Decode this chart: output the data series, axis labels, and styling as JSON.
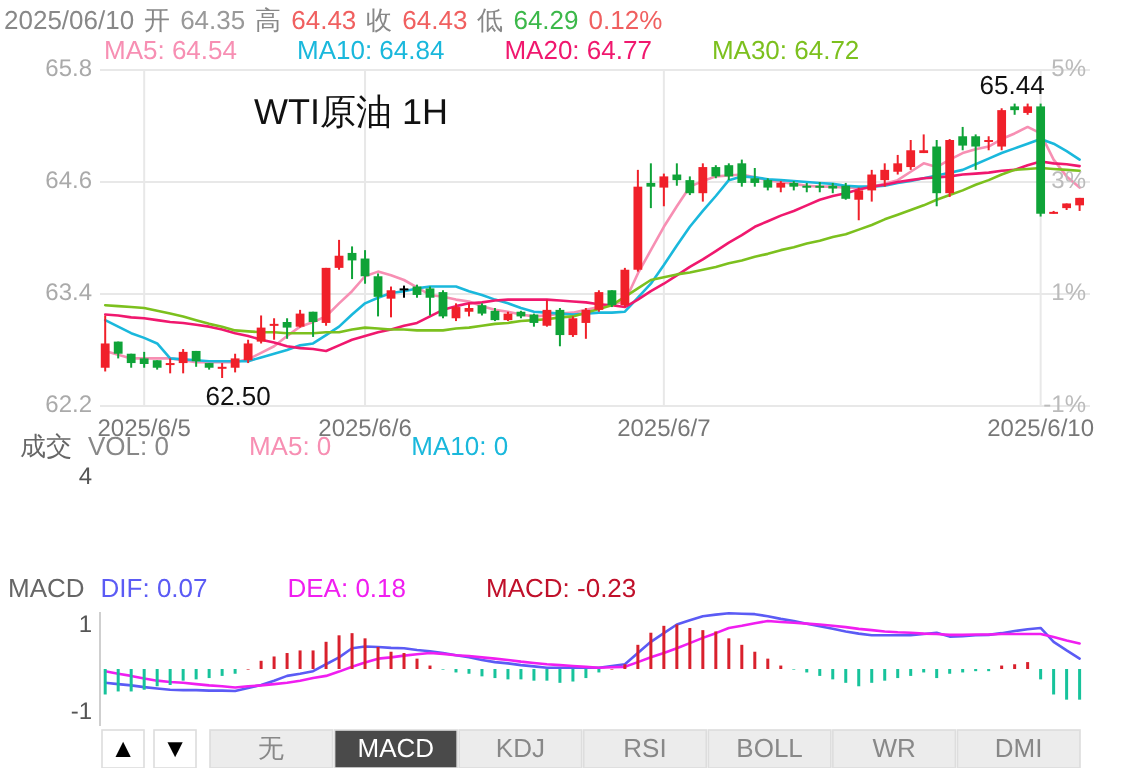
{
  "chart_data": [
    {
      "type": "candlestick",
      "title": "WTI原油 1H",
      "legend": "top",
      "grid": true,
      "categories": [
        null,
        null,
        null,
        "2025/6/5",
        null,
        null,
        null,
        null,
        null,
        null,
        null,
        null,
        null,
        null,
        null,
        null,
        null,
        null,
        null,
        null,
        "2025/6/6",
        null,
        null,
        null,
        null,
        null,
        null,
        null,
        null,
        null,
        null,
        null,
        null,
        null,
        null,
        null,
        null,
        null,
        null,
        null,
        null,
        null,
        null,
        "2025/6/7",
        null,
        null,
        null,
        null,
        null,
        null,
        null,
        null,
        null,
        null,
        null,
        null,
        null,
        null,
        null,
        null,
        null,
        null,
        null,
        null,
        null,
        null,
        null,
        null,
        null,
        null,
        null,
        null,
        "2025/6/10",
        null,
        null,
        null
      ],
      "ohlc": [
        [
          62.61,
          63.17,
          62.57,
          62.87
        ],
        [
          62.89,
          62.89,
          62.71,
          62.76
        ],
        [
          62.76,
          62.76,
          62.61,
          62.66
        ],
        [
          62.71,
          62.78,
          62.61,
          62.65
        ],
        [
          62.69,
          62.69,
          62.59,
          62.61
        ],
        [
          62.64,
          62.71,
          62.55,
          62.66
        ],
        [
          62.66,
          62.81,
          62.55,
          62.78
        ],
        [
          62.79,
          62.79,
          62.62,
          62.68
        ],
        [
          62.66,
          62.66,
          62.59,
          62.61
        ],
        [
          62.61,
          62.66,
          62.5,
          62.62
        ],
        [
          62.61,
          62.76,
          62.56,
          62.71
        ],
        [
          62.69,
          62.91,
          62.66,
          62.87
        ],
        [
          62.89,
          63.17,
          62.87,
          63.04
        ],
        [
          63.06,
          63.14,
          62.91,
          63.08
        ],
        [
          63.1,
          63.14,
          62.92,
          63.04
        ],
        [
          63.05,
          63.23,
          63.04,
          63.19
        ],
        [
          63.21,
          63.21,
          62.94,
          63.1
        ],
        [
          63.09,
          63.68,
          63.06,
          63.68
        ],
        [
          63.68,
          63.98,
          63.66,
          63.81
        ],
        [
          63.84,
          63.91,
          63.56,
          63.76
        ],
        [
          63.78,
          63.87,
          63.51,
          63.59
        ],
        [
          63.59,
          63.62,
          63.16,
          63.37
        ],
        [
          63.35,
          63.48,
          63.15,
          63.44
        ],
        [
          63.46,
          63.49,
          63.36,
          63.46
        ],
        [
          63.48,
          63.5,
          63.36,
          63.39
        ],
        [
          63.46,
          63.48,
          63.17,
          63.36
        ],
        [
          63.42,
          63.44,
          63.14,
          63.16
        ],
        [
          63.14,
          63.3,
          63.11,
          63.26
        ],
        [
          63.21,
          63.3,
          63.16,
          63.25
        ],
        [
          63.28,
          63.3,
          63.17,
          63.19
        ],
        [
          63.22,
          63.25,
          63.11,
          63.12
        ],
        [
          63.12,
          63.21,
          63.11,
          63.19
        ],
        [
          63.21,
          63.22,
          63.14,
          63.16
        ],
        [
          63.18,
          63.19,
          63.05,
          63.09
        ],
        [
          63.06,
          63.34,
          63.05,
          63.23
        ],
        [
          63.23,
          63.25,
          62.84,
          62.96
        ],
        [
          62.96,
          63.16,
          62.94,
          63.14
        ],
        [
          63.09,
          63.25,
          62.92,
          63.23
        ],
        [
          63.23,
          63.44,
          63.21,
          63.42
        ],
        [
          63.44,
          63.44,
          63.26,
          63.28
        ],
        [
          63.28,
          63.68,
          63.26,
          63.66
        ],
        [
          63.66,
          64.73,
          63.64,
          64.55
        ],
        [
          64.59,
          64.8,
          64.32,
          64.55
        ],
        [
          64.54,
          64.69,
          64.34,
          64.66
        ],
        [
          64.68,
          64.8,
          64.56,
          64.62
        ],
        [
          64.62,
          64.66,
          64.46,
          64.48
        ],
        [
          64.48,
          64.8,
          64.39,
          64.76
        ],
        [
          64.76,
          64.78,
          64.64,
          64.66
        ],
        [
          64.78,
          64.8,
          64.62,
          64.66
        ],
        [
          64.8,
          64.84,
          64.55,
          64.59
        ],
        [
          64.64,
          64.75,
          64.55,
          64.59
        ],
        [
          64.62,
          64.64,
          64.51,
          64.54
        ],
        [
          64.54,
          64.61,
          64.49,
          64.59
        ],
        [
          64.59,
          64.61,
          64.51,
          64.55
        ],
        [
          64.56,
          64.59,
          64.49,
          64.54
        ],
        [
          64.56,
          64.6,
          64.49,
          64.54
        ],
        [
          64.56,
          64.59,
          64.48,
          64.53
        ],
        [
          64.56,
          64.59,
          64.41,
          64.42
        ],
        [
          64.41,
          64.54,
          64.19,
          64.51
        ],
        [
          64.51,
          64.73,
          64.39,
          64.68
        ],
        [
          64.62,
          64.8,
          64.55,
          64.73
        ],
        [
          64.71,
          64.89,
          64.68,
          64.8
        ],
        [
          64.76,
          65.05,
          64.73,
          64.94
        ],
        [
          64.91,
          65.11,
          64.91,
          64.94
        ],
        [
          64.98,
          65.05,
          64.34,
          64.48
        ],
        [
          64.48,
          65.06,
          64.44,
          65.05
        ],
        [
          65.09,
          65.19,
          64.94,
          64.99
        ],
        [
          65.09,
          65.11,
          64.73,
          64.98
        ],
        [
          65.03,
          65.09,
          64.94,
          65.05
        ],
        [
          64.98,
          65.39,
          64.94,
          65.37
        ],
        [
          65.41,
          65.44,
          65.32,
          65.37
        ],
        [
          65.34,
          65.44,
          65.32,
          65.41
        ],
        [
          65.41,
          65.44,
          64.23,
          64.26
        ],
        [
          64.26,
          64.29,
          64.26,
          64.28
        ],
        [
          64.32,
          64.37,
          64.3,
          64.37
        ],
        [
          64.35,
          64.43,
          64.29,
          64.43
        ]
      ],
      "series": [
        {
          "name": "MA5: 64.54",
          "type": "line",
          "color": "#f78fb3",
          "values": [
            62.79,
            62.75,
            62.71,
            62.71,
            62.71,
            62.71,
            62.69,
            62.67,
            62.67,
            62.67,
            62.67,
            62.7,
            62.77,
            62.84,
            62.95,
            63.05,
            63.1,
            63.16,
            63.3,
            63.43,
            63.59,
            63.64,
            63.6,
            63.55,
            63.47,
            63.39,
            63.37,
            63.34,
            63.32,
            63.27,
            63.23,
            63.21,
            63.18,
            63.16,
            63.17,
            63.19,
            63.2,
            63.23,
            63.26,
            63.29,
            63.32,
            63.62,
            63.87,
            64.12,
            64.34,
            64.55,
            64.61,
            64.66,
            64.67,
            64.68,
            64.65,
            64.62,
            64.6,
            64.58,
            64.56,
            64.55,
            64.55,
            64.54,
            64.54,
            64.55,
            64.58,
            64.62,
            64.71,
            64.8,
            64.76,
            64.84,
            64.91,
            64.95,
            64.98,
            65.06,
            65.12,
            65.19,
            65.12,
            64.84,
            64.66,
            64.54
          ]
        },
        {
          "name": "MA10: 64.84",
          "type": "line",
          "color": "#1ab8dc",
          "values": [
            63.12,
            63.05,
            62.98,
            62.93,
            62.87,
            62.71,
            62.7,
            62.69,
            62.68,
            62.68,
            62.68,
            62.68,
            62.72,
            62.76,
            62.8,
            62.85,
            62.87,
            62.96,
            63.05,
            63.18,
            63.3,
            63.36,
            63.41,
            63.43,
            63.46,
            63.48,
            63.48,
            63.48,
            63.43,
            63.39,
            63.34,
            63.3,
            63.25,
            63.21,
            63.2,
            63.19,
            63.18,
            63.19,
            63.2,
            63.2,
            63.21,
            63.36,
            63.51,
            63.71,
            63.92,
            64.12,
            64.29,
            64.45,
            64.62,
            64.66,
            64.65,
            64.63,
            64.62,
            64.61,
            64.6,
            64.59,
            64.58,
            64.56,
            64.55,
            64.55,
            64.56,
            64.59,
            64.61,
            64.64,
            64.67,
            64.7,
            64.73,
            64.79,
            64.85,
            64.91,
            64.96,
            65.01,
            65.06,
            65.01,
            64.93,
            64.84
          ]
        },
        {
          "name": "MA20: 64.77",
          "type": "line",
          "color": "#f0186e",
          "values": [
            63.18,
            63.17,
            63.15,
            63.14,
            63.12,
            63.1,
            63.09,
            63.07,
            63.05,
            63.02,
            62.98,
            62.95,
            62.91,
            62.88,
            62.84,
            62.82,
            62.81,
            62.79,
            62.85,
            62.91,
            62.95,
            62.99,
            63.02,
            63.06,
            63.09,
            63.16,
            63.23,
            63.27,
            63.3,
            63.31,
            63.33,
            63.34,
            63.34,
            63.34,
            63.34,
            63.33,
            63.32,
            63.31,
            63.29,
            63.28,
            63.26,
            63.34,
            63.43,
            63.51,
            63.6,
            63.69,
            63.77,
            63.86,
            63.95,
            64.03,
            64.12,
            64.18,
            64.24,
            64.29,
            64.35,
            64.41,
            64.45,
            64.48,
            64.52,
            64.55,
            64.57,
            64.6,
            64.62,
            64.64,
            64.65,
            64.66,
            64.68,
            64.69,
            64.7,
            64.72,
            64.73,
            64.78,
            64.82,
            64.8,
            64.79,
            64.77
          ]
        },
        {
          "name": "MA30: 64.72",
          "type": "line",
          "color": "#7cc01e",
          "values": [
            63.28,
            63.27,
            63.26,
            63.25,
            63.22,
            63.19,
            63.16,
            63.12,
            63.08,
            63.05,
            63.01,
            63.0,
            62.99,
            62.99,
            62.98,
            62.98,
            62.98,
            62.99,
            62.99,
            63.02,
            63.04,
            63.03,
            63.02,
            63.02,
            63.01,
            63.01,
            63.01,
            63.03,
            63.04,
            63.06,
            63.08,
            63.09,
            63.11,
            63.12,
            63.13,
            63.15,
            63.16,
            63.2,
            63.24,
            63.28,
            63.37,
            63.46,
            63.55,
            63.58,
            63.61,
            63.63,
            63.66,
            63.69,
            63.73,
            63.76,
            63.8,
            63.83,
            63.87,
            63.9,
            63.94,
            63.97,
            64.01,
            64.04,
            64.09,
            64.14,
            64.2,
            64.25,
            64.3,
            64.35,
            64.41,
            64.46,
            64.51,
            64.57,
            64.62,
            64.68,
            64.73,
            64.74,
            64.75,
            64.74,
            64.73,
            64.72
          ]
        }
      ],
      "ylim": [
        62.2,
        65.8
      ],
      "yticks": [
        62.2,
        63.4,
        64.6,
        65.8
      ],
      "y2lim": [
        -1,
        5
      ],
      "y2ticks": [
        {
          "value": -1,
          "label": "-1%"
        },
        {
          "value": 1,
          "label": "1%"
        },
        {
          "value": 3,
          "label": "3%"
        },
        {
          "value": 5,
          "label": "5%"
        }
      ],
      "annotations": [
        {
          "text": "65.44",
          "x": "2025/6/10",
          "y": 65.44
        },
        {
          "text": "62.50",
          "y": 62.5
        },
        "2025/06/10",
        "开",
        "64.35",
        "高",
        "64.43",
        "收",
        "64.43",
        "低",
        "64.29",
        "0.12%"
      ]
    },
    {
      "type": "other",
      "title": "成交",
      "annotations": [
        "VOL: 0",
        "MA5: 0",
        "MA10: 0",
        "4"
      ]
    },
    {
      "type": "line",
      "title": "MACD",
      "legend": "top",
      "tick_labels": "y",
      "categories": [
        null,
        null,
        null,
        null,
        null,
        null,
        null,
        null,
        null,
        null,
        null,
        null,
        null,
        null,
        null,
        null,
        null,
        null,
        null,
        null,
        null,
        null,
        null,
        null,
        null,
        null,
        null,
        null,
        null,
        null,
        null,
        null,
        null,
        null,
        null,
        null,
        null,
        null,
        null,
        null,
        null,
        null,
        null,
        null,
        null,
        null,
        null,
        null,
        null,
        null,
        null,
        null,
        null,
        null,
        null,
        null,
        null,
        null,
        null,
        null,
        null,
        null,
        null,
        null,
        null,
        null,
        null,
        null,
        null,
        null,
        null,
        null,
        null,
        null,
        null,
        null
      ],
      "series": [
        {
          "name": "DIF: 0.07",
          "type": "line",
          "color": "#5b5bf5",
          "values": [
            -0.32,
            -0.35,
            -0.38,
            -0.42,
            -0.45,
            -0.48,
            -0.49,
            -0.49,
            -0.5,
            -0.5,
            -0.51,
            -0.44,
            -0.37,
            -0.27,
            -0.16,
            -0.11,
            -0.05,
            0.11,
            0.27,
            0.48,
            0.52,
            0.51,
            0.49,
            0.48,
            0.44,
            0.41,
            0.37,
            0.32,
            0.27,
            0.21,
            0.16,
            0.13,
            0.09,
            0.06,
            0.03,
            0.03,
            0.03,
            0.03,
            0.03,
            0.07,
            0.11,
            0.37,
            0.63,
            0.83,
            1.03,
            1.13,
            1.22,
            1.26,
            1.29,
            1.28,
            1.27,
            1.22,
            1.16,
            1.11,
            1.05,
            0.99,
            0.93,
            0.87,
            0.82,
            0.78,
            0.78,
            0.78,
            0.78,
            0.81,
            0.84,
            0.75,
            0.76,
            0.78,
            0.79,
            0.83,
            0.88,
            0.92,
            0.95,
            0.63,
            0.43,
            0.24
          ]
        },
        {
          "name": "DEA: 0.18",
          "type": "line",
          "color": "#f01ef0",
          "values": [
            -0.05,
            -0.11,
            -0.16,
            -0.22,
            -0.27,
            -0.3,
            -0.32,
            -0.35,
            -0.38,
            -0.4,
            -0.43,
            -0.4,
            -0.38,
            -0.35,
            -0.32,
            -0.27,
            -0.21,
            -0.16,
            -0.06,
            0.05,
            0.15,
            0.24,
            0.27,
            0.31,
            0.34,
            0.37,
            0.35,
            0.32,
            0.3,
            0.27,
            0.24,
            0.21,
            0.17,
            0.14,
            0.11,
            0.09,
            0.07,
            0.05,
            0.03,
            0.04,
            0.05,
            0.16,
            0.27,
            0.37,
            0.48,
            0.6,
            0.72,
            0.83,
            0.95,
            1.0,
            1.06,
            1.11,
            1.09,
            1.07,
            1.05,
            1.03,
            1.0,
            0.97,
            0.93,
            0.9,
            0.87,
            0.85,
            0.84,
            0.82,
            0.81,
            0.79,
            0.79,
            0.8,
            0.8,
            0.81,
            0.81,
            0.81,
            0.81,
            0.74,
            0.66,
            0.59
          ]
        },
        {
          "name": "MACD: -0.23",
          "type": "bar",
          "color": "#c0102a",
          "values": [
            -0.59,
            -0.52,
            -0.52,
            -0.48,
            -0.4,
            -0.37,
            -0.27,
            -0.24,
            -0.21,
            -0.16,
            -0.11,
            0,
            0.19,
            0.29,
            0.37,
            0.43,
            0.43,
            0.63,
            0.78,
            0.83,
            0.71,
            0.51,
            0.4,
            0.37,
            0.24,
            0.08,
            0,
            -0.08,
            -0.11,
            -0.17,
            -0.21,
            -0.24,
            -0.24,
            -0.27,
            -0.27,
            -0.32,
            -0.29,
            -0.21,
            -0.08,
            0,
            0.11,
            0.56,
            0.84,
            1.0,
            1.03,
            0.95,
            0.9,
            0.87,
            0.71,
            0.56,
            0.4,
            0.24,
            0.08,
            0,
            -0.08,
            -0.16,
            -0.24,
            -0.32,
            -0.4,
            -0.32,
            -0.27,
            -0.21,
            -0.16,
            -0.08,
            -0.21,
            -0.11,
            -0.08,
            -0.05,
            -0.05,
            0.08,
            0.11,
            0.16,
            -0.24,
            -0.59,
            -0.71,
            -0.71
          ],
          "colors": [
            "#17c39b",
            "#17c39b",
            "#17c39b",
            "#17c39b",
            "#17c39b",
            "#17c39b",
            "#17c39b",
            "#17c39b",
            "#17c39b",
            "#17c39b",
            "#17c39b",
            "#d9202c",
            "#d9202c",
            "#d9202c",
            "#d9202c",
            "#d9202c",
            "#d9202c",
            "#d9202c",
            "#d9202c",
            "#d9202c",
            "#d9202c",
            "#d9202c",
            "#d9202c",
            "#d9202c",
            "#d9202c",
            "#d9202c",
            "#17c39b",
            "#17c39b",
            "#17c39b",
            "#17c39b",
            "#17c39b",
            "#17c39b",
            "#17c39b",
            "#17c39b",
            "#17c39b",
            "#17c39b",
            "#17c39b",
            "#17c39b",
            "#17c39b",
            "#d9202c",
            "#d9202c",
            "#d9202c",
            "#d9202c",
            "#d9202c",
            "#d9202c",
            "#d9202c",
            "#d9202c",
            "#d9202c",
            "#d9202c",
            "#d9202c",
            "#d9202c",
            "#d9202c",
            "#d9202c",
            "#17c39b",
            "#17c39b",
            "#17c39b",
            "#17c39b",
            "#17c39b",
            "#17c39b",
            "#17c39b",
            "#17c39b",
            "#17c39b",
            "#17c39b",
            "#17c39b",
            "#17c39b",
            "#17c39b",
            "#17c39b",
            "#17c39b",
            "#17c39b",
            "#d9202c",
            "#d9202c",
            "#d9202c",
            "#17c39b",
            "#17c39b",
            "#17c39b",
            "#17c39b"
          ]
        }
      ],
      "ylim": [
        -1.32,
        1.32
      ],
      "yticks": [
        1,
        -1
      ]
    },
    {
      "type": "other",
      "annotations": [
        "▲",
        "▼",
        "无",
        "MACD",
        "KDJ",
        "RSI",
        "BOLL",
        "WR",
        "DMI"
      ]
    }
  ]
}
